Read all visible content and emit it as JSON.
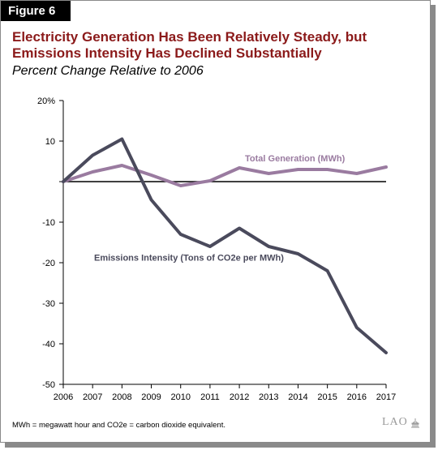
{
  "figure_label": "Figure 6",
  "title": "Electricity Generation Has Been Relatively Steady, but Emissions Intensity Has Declined Substantially",
  "subtitle": "Percent Change Relative to 2006",
  "footnote": "MWh = megawatt hour and CO2e = carbon dioxide equivalent.",
  "logo_text": "LAO",
  "colors": {
    "title": "#8b1a1a",
    "total_generation": "#9a7ba0",
    "emissions_intensity": "#4a4a5c",
    "zero_line": "#000000"
  },
  "chart_data": {
    "type": "line",
    "title": "Electricity Generation Has Been Relatively Steady, but Emissions Intensity Has Declined Substantially",
    "subtitle": "Percent Change Relative to 2006",
    "xlabel": "",
    "ylabel": "",
    "x": [
      "2006",
      "2007",
      "2008",
      "2009",
      "2010",
      "2011",
      "2012",
      "2013",
      "2014",
      "2015",
      "2016",
      "2017"
    ],
    "ylim": [
      -50,
      20
    ],
    "yticks": [
      20,
      10,
      0,
      -10,
      -20,
      -30,
      -40,
      -50
    ],
    "ytick_labels": [
      "20%",
      "10",
      "",
      "-10",
      "-20",
      "-30",
      "-40",
      "-50"
    ],
    "grid": false,
    "legend": "direct labels on lines",
    "series": [
      {
        "name": "Total Generation (MWh)",
        "values": [
          0,
          2.4,
          4.0,
          1.6,
          -1.0,
          0.2,
          3.4,
          2.0,
          3.0,
          3.0,
          2.0,
          3.6
        ]
      },
      {
        "name": "Emissions Intensity (Tons of CO2e per MWh)",
        "values": [
          0,
          6.5,
          10.5,
          -4.5,
          -13.0,
          -16.0,
          -11.5,
          -16.0,
          -17.8,
          -22.0,
          -36.0,
          -42.2
        ]
      }
    ]
  }
}
